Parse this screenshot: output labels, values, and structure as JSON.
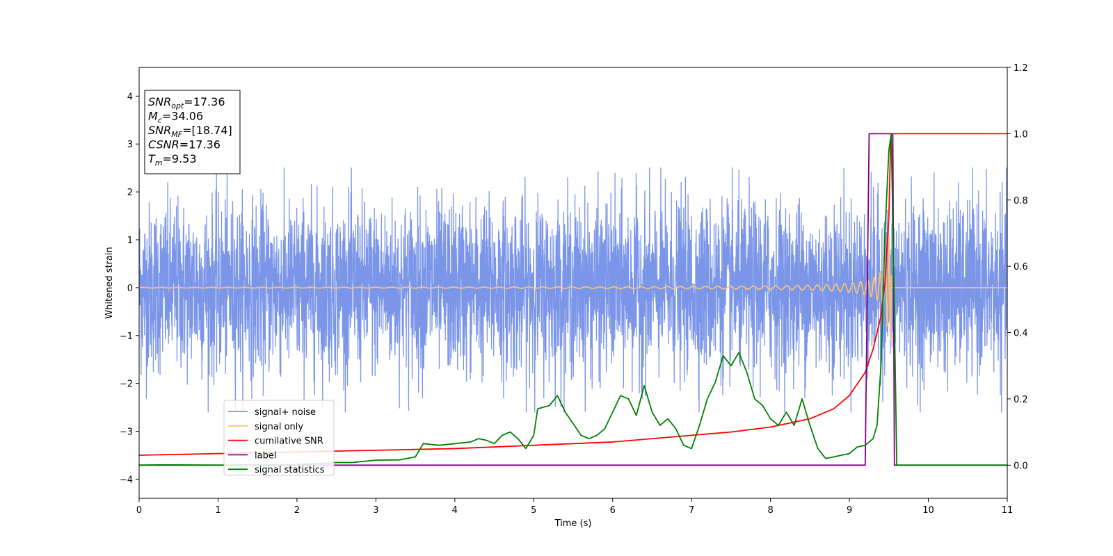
{
  "chart_data": {
    "type": "line",
    "xlabel": "Time (s)",
    "ylabel": "Whitened strain",
    "xlim": [
      0,
      11
    ],
    "ylim": [
      -4.4,
      4.6
    ],
    "y2lim": [
      -0.1,
      1.2
    ],
    "xticks": [
      "0",
      "1",
      "2",
      "3",
      "4",
      "5",
      "6",
      "7",
      "8",
      "9",
      "10",
      "11"
    ],
    "yticks": [
      "4",
      "3",
      "2",
      "1",
      "0",
      "−1",
      "−2",
      "−3",
      "−4"
    ],
    "y2ticks": [
      "1.2",
      "1.0",
      "0.8",
      "0.6",
      "0.4",
      "0.2",
      "0.0"
    ],
    "grid": false,
    "legend_position": "lower-left",
    "annotation_box": {
      "lines": [
        {
          "sym": "SNR",
          "sub": "opt",
          "val": "=17.36"
        },
        {
          "sym": "M",
          "sub": "c",
          "val": "=34.06"
        },
        {
          "sym": "SNR",
          "sub": "MF",
          "val": "=[18.74]"
        },
        {
          "sym": "CSNR",
          "sub": "",
          "val": "=17.36"
        },
        {
          "sym": "T",
          "sub": "m",
          "val": "=9.53"
        }
      ]
    },
    "series": [
      {
        "name": "signal+ noise",
        "color": "#7b96e8",
        "axis": "left",
        "style": "noise",
        "envelope": {
          "typical": 1.6,
          "extremes": [
            2.5,
            -2.6
          ]
        }
      },
      {
        "name": "signal only",
        "color": "#f5c27a",
        "axis": "left",
        "style": "chirp",
        "merger_time": 9.53,
        "peak_amplitude": 1.1
      },
      {
        "name": "cumilative SNR",
        "color": "#ff0000",
        "axis": "right",
        "points": [
          [
            0,
            0.03
          ],
          [
            1,
            0.035
          ],
          [
            2,
            0.04
          ],
          [
            3,
            0.045
          ],
          [
            4,
            0.05
          ],
          [
            5,
            0.06
          ],
          [
            6,
            0.07
          ],
          [
            7,
            0.09
          ],
          [
            7.5,
            0.1
          ],
          [
            8,
            0.115
          ],
          [
            8.5,
            0.14
          ],
          [
            8.8,
            0.17
          ],
          [
            9.0,
            0.21
          ],
          [
            9.2,
            0.28
          ],
          [
            9.3,
            0.35
          ],
          [
            9.4,
            0.45
          ],
          [
            9.45,
            0.55
          ],
          [
            9.5,
            0.75
          ],
          [
            9.52,
            0.95
          ],
          [
            9.53,
            1.0
          ],
          [
            11,
            1.0
          ]
        ]
      },
      {
        "name": "label",
        "color": "#800080",
        "axis": "right",
        "points": [
          [
            0,
            0.0
          ],
          [
            9.2,
            0.0
          ],
          [
            9.25,
            1.0
          ],
          [
            9.55,
            1.0
          ],
          [
            9.57,
            0.0
          ],
          [
            11,
            0.0
          ]
        ]
      },
      {
        "name": "signal statistics",
        "color": "#008000",
        "axis": "right",
        "points": [
          [
            0,
            0.0
          ],
          [
            0.3,
            0.001
          ],
          [
            1,
            0.0
          ],
          [
            2,
            0.002
          ],
          [
            2.5,
            0.008
          ],
          [
            2.7,
            0.008
          ],
          [
            3,
            0.015
          ],
          [
            3.3,
            0.016
          ],
          [
            3.5,
            0.025
          ],
          [
            3.6,
            0.065
          ],
          [
            3.8,
            0.06
          ],
          [
            4.0,
            0.065
          ],
          [
            4.2,
            0.07
          ],
          [
            4.3,
            0.08
          ],
          [
            4.4,
            0.075
          ],
          [
            4.5,
            0.065
          ],
          [
            4.6,
            0.09
          ],
          [
            4.7,
            0.1
          ],
          [
            4.8,
            0.08
          ],
          [
            4.9,
            0.05
          ],
          [
            5.0,
            0.09
          ],
          [
            5.05,
            0.17
          ],
          [
            5.2,
            0.18
          ],
          [
            5.3,
            0.21
          ],
          [
            5.4,
            0.16
          ],
          [
            5.6,
            0.09
          ],
          [
            5.7,
            0.08
          ],
          [
            5.8,
            0.09
          ],
          [
            5.9,
            0.11
          ],
          [
            6.0,
            0.16
          ],
          [
            6.1,
            0.21
          ],
          [
            6.2,
            0.2
          ],
          [
            6.3,
            0.15
          ],
          [
            6.4,
            0.24
          ],
          [
            6.5,
            0.16
          ],
          [
            6.6,
            0.12
          ],
          [
            6.7,
            0.14
          ],
          [
            6.8,
            0.11
          ],
          [
            6.9,
            0.06
          ],
          [
            7.0,
            0.05
          ],
          [
            7.1,
            0.12
          ],
          [
            7.2,
            0.2
          ],
          [
            7.3,
            0.25
          ],
          [
            7.4,
            0.33
          ],
          [
            7.5,
            0.3
          ],
          [
            7.6,
            0.34
          ],
          [
            7.7,
            0.28
          ],
          [
            7.8,
            0.2
          ],
          [
            7.9,
            0.18
          ],
          [
            8.0,
            0.14
          ],
          [
            8.1,
            0.12
          ],
          [
            8.2,
            0.16
          ],
          [
            8.3,
            0.12
          ],
          [
            8.4,
            0.2
          ],
          [
            8.5,
            0.12
          ],
          [
            8.6,
            0.05
          ],
          [
            8.7,
            0.02
          ],
          [
            8.8,
            0.025
          ],
          [
            8.9,
            0.03
          ],
          [
            9.0,
            0.035
          ],
          [
            9.1,
            0.055
          ],
          [
            9.2,
            0.06
          ],
          [
            9.3,
            0.08
          ],
          [
            9.35,
            0.12
          ],
          [
            9.4,
            0.3
          ],
          [
            9.45,
            0.7
          ],
          [
            9.5,
            0.95
          ],
          [
            9.53,
            1.0
          ],
          [
            9.56,
            0.6
          ],
          [
            9.6,
            0.0
          ],
          [
            11,
            0.0
          ]
        ]
      }
    ]
  }
}
